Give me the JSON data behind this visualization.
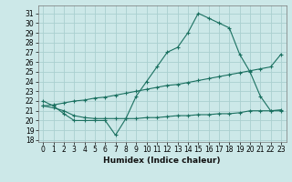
{
  "xlabel": "Humidex (Indice chaleur)",
  "bg_color": "#cce8e8",
  "grid_color": "#aad0d0",
  "line_color": "#1a7060",
  "x_ticks": [
    0,
    1,
    2,
    3,
    4,
    5,
    6,
    7,
    8,
    9,
    10,
    11,
    12,
    13,
    14,
    15,
    16,
    17,
    18,
    19,
    20,
    21,
    22,
    23
  ],
  "y_ticks": [
    18,
    19,
    20,
    21,
    22,
    23,
    24,
    25,
    26,
    27,
    28,
    29,
    30,
    31
  ],
  "ylim": [
    17.8,
    31.8
  ],
  "xlim": [
    -0.5,
    23.5
  ],
  "line1_x": [
    0,
    1,
    2,
    3,
    4,
    5,
    6,
    7,
    8,
    9,
    10,
    11,
    12,
    13,
    14,
    15,
    16,
    17,
    18,
    19,
    20,
    21,
    22,
    23
  ],
  "line1_y": [
    22.0,
    21.5,
    20.7,
    20.0,
    20.0,
    20.0,
    20.0,
    18.5,
    20.2,
    22.5,
    24.0,
    25.5,
    27.0,
    27.5,
    29.0,
    31.0,
    30.5,
    30.0,
    29.5,
    26.8,
    25.0,
    22.5,
    21.0,
    21.0
  ],
  "line2_x": [
    0,
    1,
    2,
    3,
    4,
    5,
    6,
    7,
    8,
    9,
    10,
    11,
    12,
    13,
    14,
    15,
    16,
    17,
    18,
    19,
    20,
    21,
    22,
    23
  ],
  "line2_y": [
    21.5,
    21.6,
    21.8,
    22.0,
    22.1,
    22.3,
    22.4,
    22.6,
    22.8,
    23.0,
    23.2,
    23.4,
    23.6,
    23.7,
    23.9,
    24.1,
    24.3,
    24.5,
    24.7,
    24.9,
    25.1,
    25.3,
    25.5,
    26.8
  ],
  "line3_x": [
    0,
    1,
    2,
    3,
    4,
    5,
    6,
    7,
    8,
    9,
    10,
    11,
    12,
    13,
    14,
    15,
    16,
    17,
    18,
    19,
    20,
    21,
    22,
    23
  ],
  "line3_y": [
    21.5,
    21.3,
    21.0,
    20.5,
    20.3,
    20.2,
    20.2,
    20.2,
    20.2,
    20.2,
    20.3,
    20.3,
    20.4,
    20.5,
    20.5,
    20.6,
    20.6,
    20.7,
    20.7,
    20.8,
    21.0,
    21.0,
    21.0,
    21.1
  ],
  "tick_fontsize": 5.5,
  "xlabel_fontsize": 6.5
}
